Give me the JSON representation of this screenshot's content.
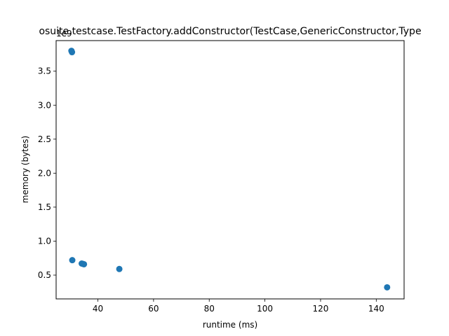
{
  "chart_data": {
    "type": "scatter",
    "title": "osuite.testcase.TestFactory.addConstructor(TestCase,GenericConstructor,Type",
    "xlabel": "runtime (ms)",
    "ylabel": "memory (bytes)",
    "y_offset_label": "1e9",
    "xlim": [
      25,
      150
    ],
    "ylim": [
      0.15,
      3.95
    ],
    "x_ticks": [
      40,
      60,
      80,
      100,
      120,
      140
    ],
    "x_tick_labels": [
      "40",
      "60",
      "80",
      "100",
      "120",
      "140"
    ],
    "y_ticks": [
      0.5,
      1.0,
      1.5,
      2.0,
      2.5,
      3.0,
      3.5
    ],
    "y_tick_labels": [
      "0.5",
      "1.0",
      "1.5",
      "2.0",
      "2.5",
      "3.0",
      "3.5"
    ],
    "grid": false,
    "marker_color": "#1f77b4",
    "points": [
      {
        "x": 30.5,
        "y": 3.8
      },
      {
        "x": 30.7,
        "y": 3.78
      },
      {
        "x": 30.8,
        "y": 0.72
      },
      {
        "x": 34.2,
        "y": 0.67
      },
      {
        "x": 34.6,
        "y": 0.665
      },
      {
        "x": 35.0,
        "y": 0.66
      },
      {
        "x": 47.7,
        "y": 0.59
      },
      {
        "x": 143.9,
        "y": 0.32
      }
    ]
  }
}
